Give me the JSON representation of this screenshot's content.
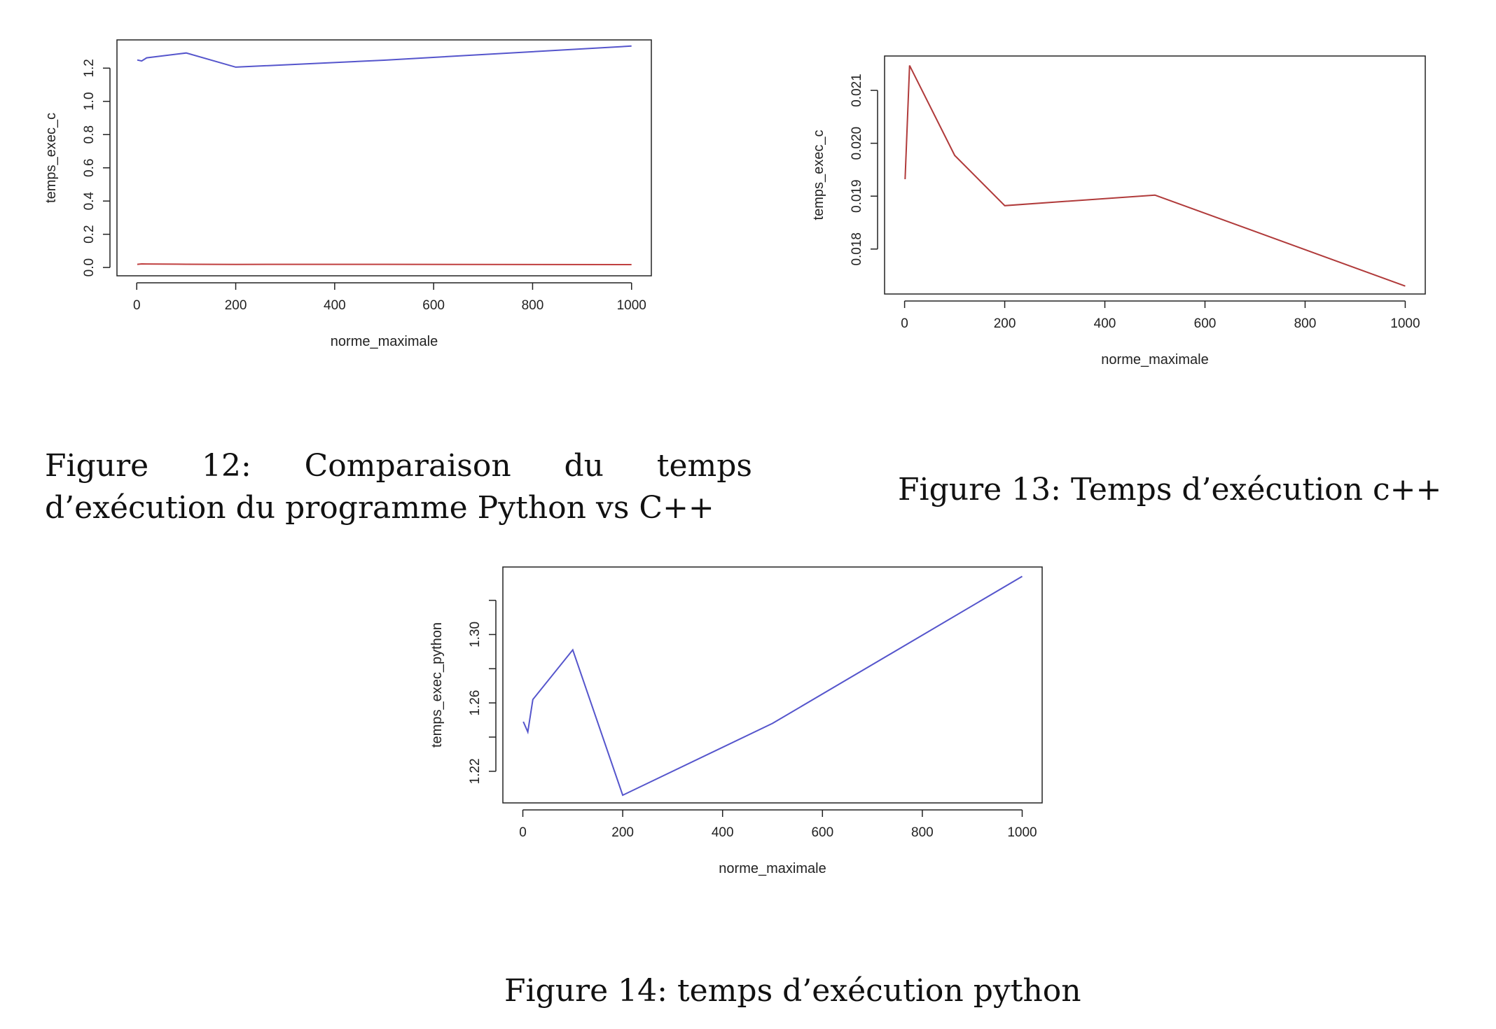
{
  "chart_data": [
    {
      "type": "line",
      "xlabel": "norme_maximale",
      "ylabel": "temps_exec_c",
      "xlim": [
        -40,
        1040
      ],
      "ylim": [
        -0.05,
        1.37
      ],
      "xticks": [
        0,
        200,
        400,
        600,
        800,
        1000
      ],
      "yticks": [
        0.0,
        0.2,
        0.4,
        0.6,
        0.8,
        1.0,
        1.2
      ],
      "ytick_labels": [
        "0.0",
        "0.2",
        "0.4",
        "0.6",
        "0.8",
        "1.0",
        "1.2"
      ],
      "series": [
        {
          "color": "#5555cc",
          "x": [
            1,
            10,
            20,
            100,
            200,
            500,
            1000
          ],
          "y": [
            1.249,
            1.243,
            1.262,
            1.291,
            1.206,
            1.248,
            1.333
          ]
        },
        {
          "color": "#c04040",
          "x": [
            1,
            10,
            20,
            100,
            200,
            500,
            1000
          ],
          "y": [
            0.0193,
            0.0215,
            0.021,
            0.0197,
            0.0188,
            0.019,
            0.0173
          ]
        }
      ]
    },
    {
      "type": "line",
      "xlabel": "norme_maximale",
      "ylabel": "temps_exec_c",
      "xlim": [
        -40,
        1040
      ],
      "ylim": [
        0.01715,
        0.02165
      ],
      "xticks": [
        0,
        200,
        400,
        600,
        800,
        1000
      ],
      "yticks": [
        0.018,
        0.019,
        0.02,
        0.021
      ],
      "ytick_labels": [
        "0.018",
        "0.019",
        "0.020",
        "0.021"
      ],
      "series": [
        {
          "color": "#b03a3a",
          "x": [
            1,
            10,
            100,
            200,
            500,
            1000
          ],
          "y": [
            0.01932,
            0.02147,
            0.01977,
            0.01882,
            0.01902,
            0.0173
          ]
        }
      ]
    },
    {
      "type": "line",
      "xlabel": "norme_maximale",
      "ylabel": "temps_exec_python",
      "xlim": [
        -40,
        1040
      ],
      "ylim": [
        1.2015,
        1.3395
      ],
      "xticks": [
        0,
        200,
        400,
        600,
        800,
        1000
      ],
      "yticks": [
        1.22,
        1.24,
        1.26,
        1.28,
        1.3,
        1.32
      ],
      "ytick_labels": [
        "1.22",
        "",
        "1.26",
        "",
        "1.30",
        ""
      ],
      "series": [
        {
          "color": "#5555cc",
          "x": [
            1,
            10,
            20,
            100,
            200,
            500,
            1000
          ],
          "y": [
            1.249,
            1.243,
            1.262,
            1.291,
            1.206,
            1.248,
            1.334
          ]
        }
      ]
    }
  ],
  "captions": {
    "fig12": "Figure 12:  Comparaison du temps d’exécution du programme Python vs C++",
    "fig13": "Figure 13: Temps d’exécution c++",
    "fig14": "Figure 14: temps d’exécution python"
  }
}
